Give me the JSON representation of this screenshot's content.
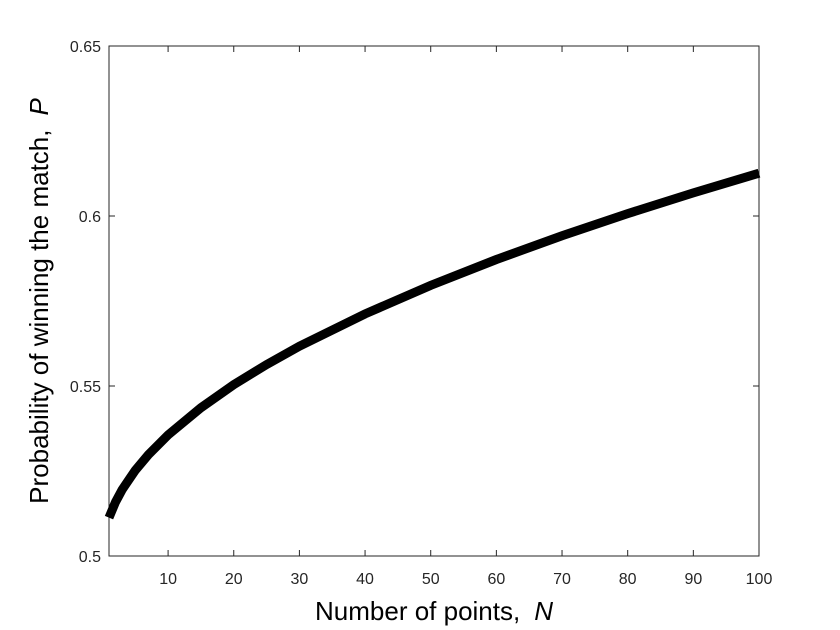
{
  "chart_data": {
    "type": "line",
    "xlabel": "Number of points,",
    "xlabel_var": "N",
    "ylabel": "Probability of winning the match,",
    "ylabel_var": "P",
    "x": [
      1,
      2,
      3,
      5,
      7,
      10,
      15,
      20,
      25,
      30,
      40,
      50,
      60,
      70,
      80,
      90,
      100
    ],
    "series": [
      {
        "color": "#000000",
        "values": [
          0.5113,
          0.5159,
          0.5195,
          0.5252,
          0.5298,
          0.5356,
          0.5436,
          0.5504,
          0.5563,
          0.5617,
          0.5712,
          0.5796,
          0.5872,
          0.5942,
          0.6007,
          0.6068,
          0.6126
        ]
      }
    ],
    "xlim": [
      1,
      100
    ],
    "xticks": [
      10,
      20,
      30,
      40,
      50,
      60,
      70,
      80,
      90,
      100
    ],
    "ylim": [
      0.5,
      0.65
    ],
    "yticks": [
      0.5,
      0.55,
      0.6,
      0.65
    ]
  }
}
